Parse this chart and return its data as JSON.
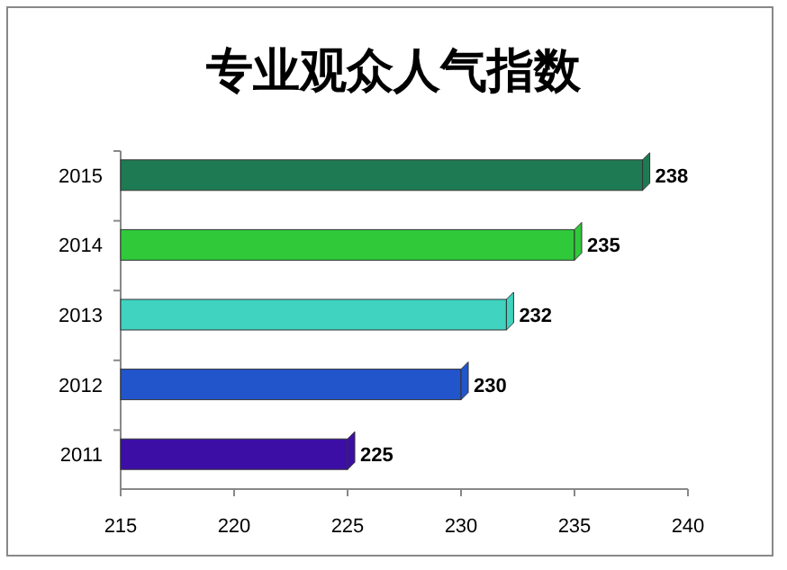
{
  "chart_data": {
    "type": "bar",
    "orientation": "horizontal",
    "title": "专业观众人气指数",
    "categories": [
      "2015",
      "2014",
      "2013",
      "2012",
      "2011"
    ],
    "values": [
      238,
      235,
      232,
      230,
      225
    ],
    "colors": [
      "#1e7a52",
      "#2fc93a",
      "#3fd3c0",
      "#2255cc",
      "#3d0ea6"
    ],
    "xlim": [
      215,
      240
    ],
    "xticks": [
      215,
      220,
      225,
      230,
      235,
      240
    ],
    "data_labels": true
  }
}
